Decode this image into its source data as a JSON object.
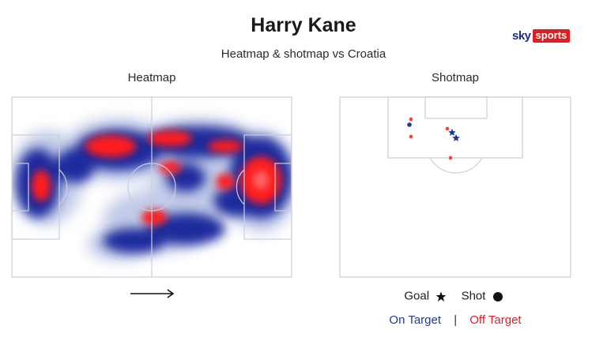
{
  "header": {
    "title": "Harry Kane",
    "subtitle": "Heatmap & shotmap vs Croatia"
  },
  "brand": {
    "sky": "sky",
    "sports": "sports",
    "sky_color": "#1f2a8a",
    "sports_bg": "#e41c23"
  },
  "heatmap": {
    "label": "Heatmap",
    "attack_direction": "left-to-right",
    "hot_color": "#ff1a1a",
    "cold_color": "#1a2a9c"
  },
  "shotmap": {
    "label": "Shotmap",
    "shots": [
      {
        "outcome": "shot",
        "target": "off",
        "color": "#ff3b3b"
      },
      {
        "outcome": "shot",
        "target": "on",
        "color": "#1f3a93"
      },
      {
        "outcome": "shot",
        "target": "off",
        "color": "#ff3b3b"
      },
      {
        "outcome": "shot",
        "target": "off",
        "color": "#ff3b3b"
      },
      {
        "outcome": "goal",
        "target": "on",
        "color": "#1f3a93"
      },
      {
        "outcome": "goal",
        "target": "on",
        "color": "#1f3a93"
      },
      {
        "outcome": "shot",
        "target": "off",
        "color": "#ff3b3b"
      }
    ]
  },
  "legend": {
    "goal_label": "Goal",
    "shot_label": "Shot",
    "on_target": "On Target",
    "separator": "|",
    "off_target": "Off Target",
    "on_color": "#1f3a93",
    "off_color": "#e41c23"
  }
}
